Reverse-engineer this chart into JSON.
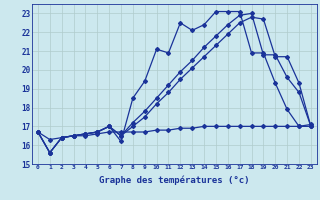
{
  "xlabel": "Graphe des températures (°c)",
  "background_color": "#cce8ee",
  "grid_color": "#b0cccc",
  "line_color": "#1a3399",
  "xmin": -0.5,
  "xmax": 23.5,
  "ymin": 15,
  "ymax": 23.5,
  "line1_x": [
    0,
    1,
    2,
    3,
    4,
    5,
    6,
    7,
    8,
    9,
    10,
    11,
    12,
    13,
    14,
    15,
    16,
    17,
    18,
    19,
    20,
    21,
    22,
    23
  ],
  "line1_y": [
    16.7,
    15.6,
    16.4,
    16.5,
    16.6,
    16.7,
    17.0,
    16.2,
    18.5,
    19.4,
    21.1,
    20.9,
    22.5,
    22.1,
    22.4,
    23.1,
    23.1,
    23.1,
    20.9,
    20.9,
    19.3,
    17.9,
    17.0,
    17.1
  ],
  "line2_x": [
    0,
    1,
    2,
    3,
    4,
    5,
    6,
    7,
    8,
    9,
    10,
    11,
    12,
    13,
    14,
    15,
    16,
    17,
    18,
    19,
    20,
    21,
    22,
    23
  ],
  "line2_y": [
    16.7,
    15.6,
    16.4,
    16.5,
    16.6,
    16.7,
    17.0,
    16.5,
    17.2,
    17.8,
    18.5,
    19.2,
    19.9,
    20.5,
    21.2,
    21.8,
    22.4,
    22.9,
    23.0,
    20.8,
    20.8,
    19.6,
    18.8,
    17.0
  ],
  "line3_x": [
    0,
    1,
    2,
    3,
    4,
    5,
    6,
    7,
    8,
    9,
    10,
    11,
    12,
    13,
    14,
    15,
    16,
    17,
    18,
    19,
    20,
    21,
    22,
    23
  ],
  "line3_y": [
    16.7,
    15.6,
    16.4,
    16.5,
    16.6,
    16.7,
    17.0,
    16.5,
    17.0,
    17.5,
    18.2,
    18.8,
    19.5,
    20.1,
    20.7,
    21.3,
    21.9,
    22.5,
    22.8,
    22.7,
    20.7,
    20.7,
    19.3,
    17.0
  ],
  "line4_x": [
    0,
    1,
    2,
    3,
    4,
    5,
    6,
    7,
    8,
    9,
    10,
    11,
    12,
    13,
    14,
    15,
    16,
    17,
    18,
    19,
    20,
    21,
    22,
    23
  ],
  "line4_y": [
    16.7,
    16.3,
    16.4,
    16.5,
    16.5,
    16.6,
    16.7,
    16.7,
    16.7,
    16.7,
    16.8,
    16.8,
    16.9,
    16.9,
    17.0,
    17.0,
    17.0,
    17.0,
    17.0,
    17.0,
    17.0,
    17.0,
    17.0,
    17.0
  ]
}
